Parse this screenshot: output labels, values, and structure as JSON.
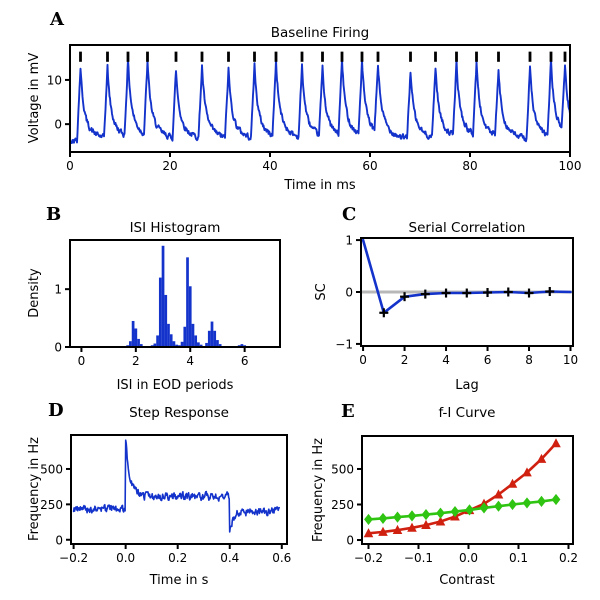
{
  "figure": {
    "background": "#ffffff",
    "trace_blue": "#1433cb",
    "marker_black": "#000000",
    "zero_line_gray": "#b8b8b8",
    "red": "#d02010",
    "green": "#2fc411"
  },
  "chart_data": [
    {
      "id": "a",
      "panel_label": "A",
      "type": "line",
      "title": "Baseline Firing",
      "xlabel": "Time in ms",
      "ylabel": "Voltage in mV",
      "xlim": [
        0,
        100
      ],
      "ylim": [
        -6.3,
        17.9
      ],
      "xticks": [
        0,
        20,
        40,
        60,
        80,
        100
      ],
      "xtick_labels": [
        "0",
        "20",
        "40",
        "60",
        "80",
        "100"
      ],
      "yticks": [
        0,
        10
      ],
      "ytick_labels": [
        "0",
        "10"
      ],
      "grid": false,
      "line_color": "#1433cb",
      "spike_times_ms": [
        2.1,
        7.5,
        11.6,
        15.5,
        21.2,
        26.4,
        31.7,
        36.9,
        41.2,
        46.4,
        50.5,
        54.4,
        58.4,
        61.6,
        68.1,
        73.1,
        77.3,
        81.3,
        85.7,
        92.0,
        96.2,
        99.0
      ],
      "raster_y_mv": [
        14.1,
        16.4
      ],
      "waveform": {
        "baseline_mv": -3.6,
        "spike_amp_mv": 16.2,
        "amp_jitter_mv": 1.4,
        "rise_ms": 0.7,
        "decay_fast_ms": 0.55,
        "decay_slow_ms": 2.0,
        "fast_fraction": 0.62,
        "noise_mv": 1.1,
        "dt_ms": 0.1,
        "seed": 42
      }
    },
    {
      "id": "b",
      "panel_label": "B",
      "type": "bar",
      "title": "ISI Histogram",
      "xlabel": "ISI in EOD periods",
      "ylabel": "Density",
      "xlim": [
        -0.42,
        7.3
      ],
      "ylim": [
        0,
        1.85
      ],
      "xticks": [
        0,
        2,
        4,
        6
      ],
      "xtick_labels": [
        "0",
        "2",
        "4",
        "6"
      ],
      "yticks": [
        0,
        1
      ],
      "ytick_labels": [
        "0",
        "1"
      ],
      "grid": false,
      "bar_color": "#1433cb",
      "bin_width": 0.1,
      "bin_centers": [
        1.7,
        1.8,
        1.9,
        2.0,
        2.1,
        2.2,
        2.6,
        2.7,
        2.8,
        2.9,
        3.0,
        3.1,
        3.2,
        3.3,
        3.4,
        3.5,
        3.6,
        3.7,
        3.8,
        3.9,
        4.0,
        4.1,
        4.2,
        4.3,
        4.4,
        4.6,
        4.7,
        4.8,
        4.9,
        5.0,
        5.1,
        5.8,
        5.9,
        6.0
      ],
      "densities": [
        0.03,
        0.1,
        0.45,
        0.32,
        0.14,
        0.05,
        0.03,
        0.06,
        0.2,
        1.2,
        1.75,
        0.9,
        0.4,
        0.22,
        0.1,
        0.04,
        0.03,
        0.09,
        0.35,
        1.55,
        1.05,
        0.4,
        0.2,
        0.08,
        0.04,
        0.07,
        0.28,
        0.44,
        0.28,
        0.12,
        0.05,
        0.03,
        0.05,
        0.03
      ]
    },
    {
      "id": "c",
      "panel_label": "C",
      "type": "line",
      "title": "Serial Correlation",
      "xlabel": "Lag",
      "ylabel": "SC",
      "xlim": [
        -0.1,
        10.12
      ],
      "ylim": [
        -1.04,
        1.04
      ],
      "xticks": [
        0,
        2,
        4,
        6,
        8,
        10
      ],
      "xtick_labels": [
        "0",
        "2",
        "4",
        "6",
        "8",
        "10"
      ],
      "yticks": [
        -1,
        0,
        1
      ],
      "ytick_labels": [
        "−1",
        "0",
        "1"
      ],
      "grid": false,
      "zero_line": true,
      "zero_line_color": "#b8b8b8",
      "line_color": "#1433cb",
      "marker": "plus",
      "marker_color": "#000000",
      "lags": [
        0,
        1,
        2,
        3,
        4,
        5,
        6,
        7,
        8,
        9,
        10
      ],
      "sc": [
        1.0,
        -0.4,
        -0.09,
        -0.04,
        -0.02,
        -0.02,
        -0.01,
        0.0,
        -0.02,
        0.01,
        0.0
      ],
      "marker_lags": [
        1,
        2,
        3,
        4,
        5,
        6,
        7,
        8,
        9
      ]
    },
    {
      "id": "d",
      "panel_label": "D",
      "type": "line",
      "title": "Step Response",
      "xlabel": "Time in s",
      "ylabel": "Frequency in Hz",
      "xlim": [
        -0.21,
        0.62
      ],
      "ylim": [
        -30,
        740
      ],
      "xticks": [
        -0.2,
        0.0,
        0.2,
        0.4,
        0.6
      ],
      "xtick_labels": [
        "−0.2",
        "0.0",
        "0.2",
        "0.4",
        "0.6"
      ],
      "yticks": [
        0,
        250,
        500
      ],
      "ytick_labels": [
        "0",
        "250",
        "500"
      ],
      "grid": false,
      "line_color": "#1433cb",
      "t_range_s": [
        -0.2,
        0.59
      ],
      "step": {
        "baseline_hz": 215,
        "onset_s": 0.0,
        "onset_peak_hz": 720,
        "adapted_hz": 305,
        "tau_adapt_s": 0.016,
        "offset_s": 0.4,
        "offset_dip_hz": 45,
        "recovered_hz": 198,
        "tau_recover_s": 0.012,
        "noise_hz": 48,
        "dt_s": 0.002,
        "seed": 9
      }
    },
    {
      "id": "e",
      "panel_label": "E",
      "type": "line",
      "title": "f-I Curve",
      "xlabel": "Contrast",
      "ylabel": "Frequency in Hz",
      "xlim": [
        -0.213,
        0.209
      ],
      "ylim": [
        -28,
        732
      ],
      "xticks": [
        -0.2,
        -0.1,
        0.0,
        0.1,
        0.2
      ],
      "xtick_labels": [
        "−0.2",
        "−0.1",
        "0.0",
        "0.1",
        "0.2"
      ],
      "yticks": [
        0,
        250,
        500
      ],
      "ytick_labels": [
        "0",
        "250",
        "500"
      ],
      "grid": false,
      "x": [
        -0.2,
        -0.171,
        -0.142,
        -0.113,
        -0.085,
        -0.056,
        -0.027,
        0.002,
        0.031,
        0.06,
        0.088,
        0.117,
        0.146,
        0.175
      ],
      "series": [
        {
          "name": "red-triangles",
          "color": "#d02010",
          "marker": "triangle-up",
          "values": [
            47,
            57,
            70,
            86,
            105,
            130,
            165,
            210,
            255,
            320,
            395,
            475,
            570,
            680
          ]
        },
        {
          "name": "green-diamonds",
          "color": "#2fc411",
          "marker": "diamond",
          "values": [
            145,
            152,
            161,
            170,
            179,
            189,
            200,
            212,
            226,
            238,
            250,
            261,
            272,
            285
          ]
        }
      ]
    }
  ]
}
